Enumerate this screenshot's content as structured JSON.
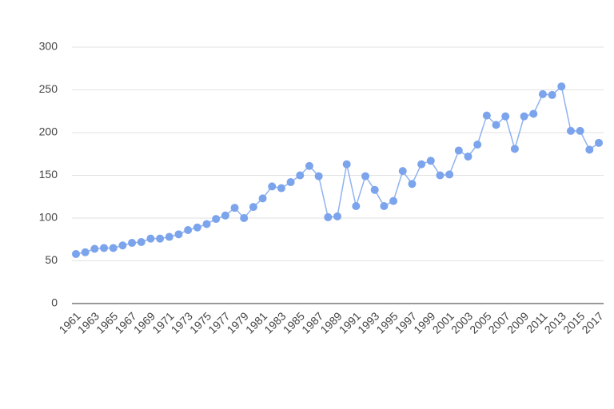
{
  "chart_data": {
    "type": "line",
    "categories": [
      "1961",
      null,
      "1963",
      null,
      "1965",
      null,
      "1967",
      null,
      "1969",
      null,
      "1971",
      null,
      "1973",
      null,
      "1975",
      null,
      "1977",
      null,
      "1979",
      null,
      "1981",
      null,
      "1983",
      null,
      "1985",
      null,
      "1987",
      null,
      "1989",
      null,
      "1991",
      null,
      "1993",
      null,
      "1995",
      null,
      "1997",
      null,
      "1999",
      null,
      "2001",
      null,
      "2003",
      null,
      "2005",
      null,
      "2007",
      null,
      "2009",
      null,
      "2011",
      null,
      "2013",
      null,
      "2015",
      null,
      "2017"
    ],
    "series": [
      {
        "color": "#7ba4ec",
        "values": [
          58,
          60,
          64,
          65,
          65,
          68,
          71,
          72,
          76,
          76,
          78,
          81,
          86,
          89,
          93,
          99,
          103,
          112,
          100,
          113,
          123,
          137,
          135,
          142,
          150,
          161,
          149,
          101,
          102,
          163,
          114,
          149,
          133,
          114,
          120,
          155,
          140,
          163,
          167,
          150,
          151,
          179,
          172,
          186,
          220,
          209,
          219,
          181,
          219,
          222,
          245,
          244,
          254,
          202,
          202,
          180,
          188
        ]
      }
    ],
    "ylim": [
      0,
      300
    ],
    "yticks": [
      0,
      50,
      100,
      150,
      200,
      250,
      300
    ],
    "grid": true
  }
}
